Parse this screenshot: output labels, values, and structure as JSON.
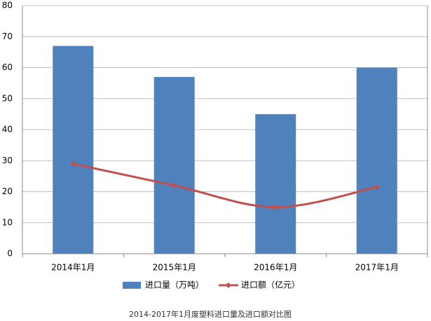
{
  "chart_data": {
    "type": "bar",
    "title": "2014-2017年1月废塑料进口量及进口额对比图",
    "categories": [
      "2014年1月",
      "2015年1月",
      "2016年1月",
      "2017年1月"
    ],
    "series": [
      {
        "name": "进口量（万吨）",
        "type": "bar",
        "color": "#4f81bd",
        "values": [
          67,
          57,
          45,
          60
        ]
      },
      {
        "name": "进口额（亿元）",
        "type": "line",
        "smooth": true,
        "color": "#c0504d",
        "values": [
          29,
          22,
          15,
          21.5
        ]
      }
    ],
    "ylim": [
      0,
      80
    ],
    "yticks": [
      0,
      10,
      20,
      30,
      40,
      50,
      60,
      70,
      80
    ],
    "grid": true,
    "legend": "bottom"
  }
}
